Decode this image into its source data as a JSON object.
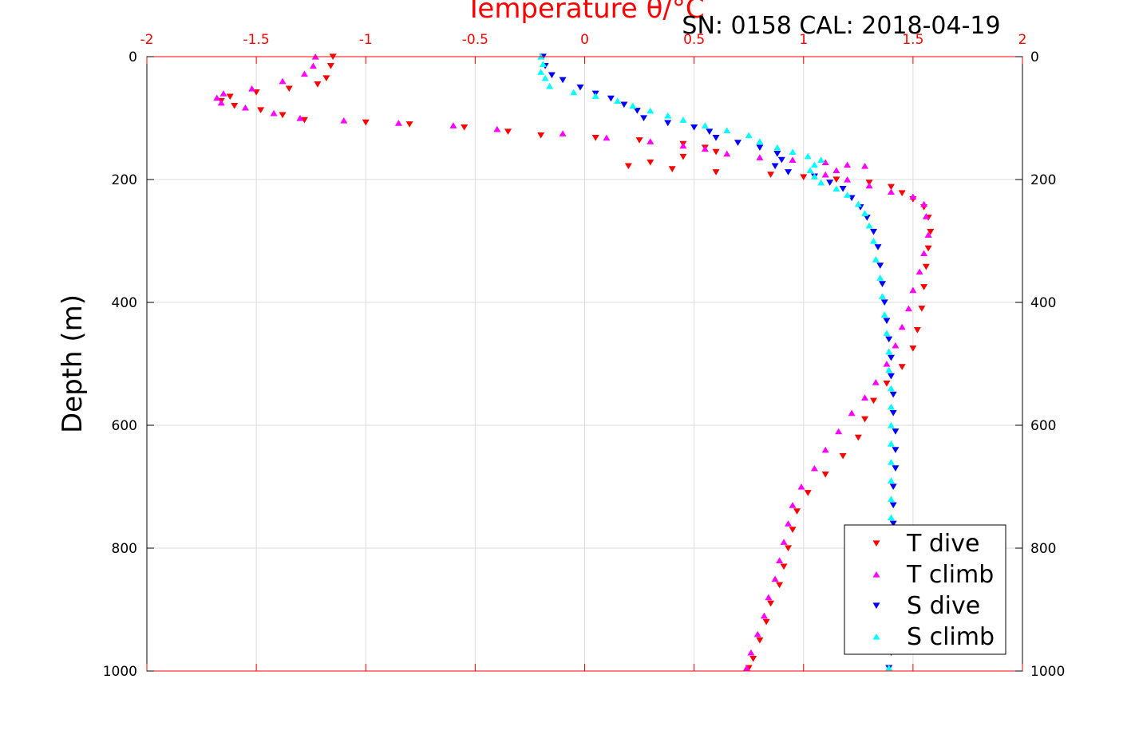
{
  "chart_data": {
    "type": "scatter",
    "title": "SN: 0158  CAL: 2018-04-19",
    "xlabel": "Temperature θ/°C",
    "ylabel": "Depth (m)",
    "xlim": [
      -2,
      2
    ],
    "ylim": [
      0,
      1000
    ],
    "y_reversed": true,
    "grid": true,
    "legend_position": "bottom-right",
    "x_ticks": [
      "-2",
      "-1.5",
      "-1",
      "-0.5",
      "0",
      "0.5",
      "1",
      "1.5",
      "2"
    ],
    "y_ticks": [
      "0",
      "200",
      "400",
      "600",
      "800",
      "1000"
    ],
    "x_tick_values": [
      -2,
      -1.5,
      -1,
      -0.5,
      0,
      0.5,
      1,
      1.5,
      2
    ],
    "y_tick_values": [
      0,
      200,
      400,
      600,
      800,
      1000
    ],
    "series": [
      {
        "name": "T dive",
        "color": "#ff0000",
        "marker": "triangle-down",
        "points": [
          [
            -1.15,
            0
          ],
          [
            -1.16,
            15
          ],
          [
            -1.18,
            35
          ],
          [
            -1.22,
            45
          ],
          [
            -1.35,
            52
          ],
          [
            -1.5,
            58
          ],
          [
            -1.62,
            65
          ],
          [
            -1.66,
            72
          ],
          [
            -1.6,
            80
          ],
          [
            -1.48,
            87
          ],
          [
            -1.38,
            95
          ],
          [
            -1.28,
            103
          ],
          [
            -1.0,
            107
          ],
          [
            -0.8,
            110
          ],
          [
            -0.55,
            115
          ],
          [
            -0.35,
            122
          ],
          [
            -0.2,
            128
          ],
          [
            0.05,
            132
          ],
          [
            0.25,
            136
          ],
          [
            0.45,
            142
          ],
          [
            0.55,
            148
          ],
          [
            0.6,
            155
          ],
          [
            0.45,
            163
          ],
          [
            0.3,
            172
          ],
          [
            0.2,
            178
          ],
          [
            0.4,
            183
          ],
          [
            0.6,
            188
          ],
          [
            0.85,
            192
          ],
          [
            1.0,
            196
          ],
          [
            1.15,
            200
          ],
          [
            1.3,
            205
          ],
          [
            1.4,
            212
          ],
          [
            1.45,
            222
          ],
          [
            1.5,
            232
          ],
          [
            1.55,
            245
          ],
          [
            1.57,
            262
          ],
          [
            1.58,
            285
          ],
          [
            1.57,
            312
          ],
          [
            1.56,
            342
          ],
          [
            1.55,
            375
          ],
          [
            1.54,
            410
          ],
          [
            1.52,
            445
          ],
          [
            1.5,
            475
          ],
          [
            1.45,
            505
          ],
          [
            1.38,
            532
          ],
          [
            1.32,
            560
          ],
          [
            1.28,
            590
          ],
          [
            1.25,
            620
          ],
          [
            1.18,
            650
          ],
          [
            1.1,
            680
          ],
          [
            1.02,
            710
          ],
          [
            0.97,
            740
          ],
          [
            0.95,
            770
          ],
          [
            0.93,
            800
          ],
          [
            0.91,
            830
          ],
          [
            0.89,
            860
          ],
          [
            0.85,
            890
          ],
          [
            0.83,
            920
          ],
          [
            0.8,
            950
          ],
          [
            0.77,
            980
          ],
          [
            0.75,
            995
          ]
        ]
      },
      {
        "name": "T climb",
        "color": "#ff00ff",
        "marker": "triangle-up",
        "points": [
          [
            -1.23,
            0
          ],
          [
            -1.24,
            15
          ],
          [
            -1.28,
            28
          ],
          [
            -1.38,
            40
          ],
          [
            -1.52,
            52
          ],
          [
            -1.65,
            60
          ],
          [
            -1.68,
            67
          ],
          [
            -1.66,
            75
          ],
          [
            -1.55,
            83
          ],
          [
            -1.42,
            92
          ],
          [
            -1.3,
            100
          ],
          [
            -1.1,
            104
          ],
          [
            -0.85,
            108
          ],
          [
            -0.6,
            112
          ],
          [
            -0.4,
            118
          ],
          [
            -0.1,
            125
          ],
          [
            0.1,
            132
          ],
          [
            0.3,
            138
          ],
          [
            0.45,
            145
          ],
          [
            0.55,
            150
          ],
          [
            0.65,
            158
          ],
          [
            0.8,
            164
          ],
          [
            0.95,
            168
          ],
          [
            1.1,
            172
          ],
          [
            1.2,
            176
          ],
          [
            1.28,
            178
          ],
          [
            1.15,
            185
          ],
          [
            1.1,
            192
          ],
          [
            1.2,
            200
          ],
          [
            1.3,
            210
          ],
          [
            1.4,
            220
          ],
          [
            1.5,
            228
          ],
          [
            1.55,
            240
          ],
          [
            1.56,
            260
          ],
          [
            1.57,
            290
          ],
          [
            1.55,
            320
          ],
          [
            1.53,
            350
          ],
          [
            1.5,
            380
          ],
          [
            1.48,
            410
          ],
          [
            1.45,
            440
          ],
          [
            1.42,
            470
          ],
          [
            1.38,
            500
          ],
          [
            1.33,
            530
          ],
          [
            1.28,
            555
          ],
          [
            1.22,
            580
          ],
          [
            1.16,
            610
          ],
          [
            1.1,
            640
          ],
          [
            1.05,
            670
          ],
          [
            0.99,
            700
          ],
          [
            0.95,
            730
          ],
          [
            0.93,
            760
          ],
          [
            0.91,
            790
          ],
          [
            0.89,
            820
          ],
          [
            0.87,
            850
          ],
          [
            0.84,
            880
          ],
          [
            0.82,
            910
          ],
          [
            0.79,
            940
          ],
          [
            0.76,
            970
          ],
          [
            0.74,
            995
          ]
        ]
      },
      {
        "name": "S dive",
        "color": "#0000ff",
        "marker": "triangle-down",
        "points": [
          [
            -0.19,
            0
          ],
          [
            -0.18,
            15
          ],
          [
            -0.15,
            30
          ],
          [
            -0.1,
            38
          ],
          [
            -0.02,
            50
          ],
          [
            0.05,
            60
          ],
          [
            0.12,
            68
          ],
          [
            0.18,
            78
          ],
          [
            0.24,
            88
          ],
          [
            0.27,
            100
          ],
          [
            0.38,
            108
          ],
          [
            0.5,
            115
          ],
          [
            0.57,
            122
          ],
          [
            0.6,
            132
          ],
          [
            0.7,
            140
          ],
          [
            0.8,
            148
          ],
          [
            0.88,
            158
          ],
          [
            0.9,
            168
          ],
          [
            0.87,
            178
          ],
          [
            0.93,
            188
          ],
          [
            1.05,
            195
          ],
          [
            1.12,
            205
          ],
          [
            1.18,
            215
          ],
          [
            1.22,
            230
          ],
          [
            1.26,
            245
          ],
          [
            1.29,
            262
          ],
          [
            1.32,
            285
          ],
          [
            1.34,
            310
          ],
          [
            1.35,
            340
          ],
          [
            1.36,
            370
          ],
          [
            1.37,
            400
          ],
          [
            1.38,
            430
          ],
          [
            1.39,
            460
          ],
          [
            1.4,
            490
          ],
          [
            1.4,
            520
          ],
          [
            1.41,
            550
          ],
          [
            1.41,
            580
          ],
          [
            1.42,
            610
          ],
          [
            1.42,
            640
          ],
          [
            1.42,
            670
          ],
          [
            1.41,
            700
          ],
          [
            1.41,
            730
          ],
          [
            1.41,
            760
          ],
          [
            1.4,
            790
          ],
          [
            1.4,
            820
          ],
          [
            1.4,
            850
          ],
          [
            1.4,
            880
          ],
          [
            1.4,
            910
          ],
          [
            1.4,
            940
          ],
          [
            1.4,
            970
          ],
          [
            1.39,
            995
          ]
        ]
      },
      {
        "name": "S climb",
        "color": "#00ffff",
        "marker": "triangle-up",
        "points": [
          [
            -0.2,
            0
          ],
          [
            -0.19,
            12
          ],
          [
            -0.2,
            25
          ],
          [
            -0.18,
            35
          ],
          [
            -0.16,
            48
          ],
          [
            -0.05,
            58
          ],
          [
            0.05,
            64
          ],
          [
            0.15,
            72
          ],
          [
            0.22,
            80
          ],
          [
            0.3,
            88
          ],
          [
            0.38,
            96
          ],
          [
            0.45,
            103
          ],
          [
            0.55,
            112
          ],
          [
            0.65,
            120
          ],
          [
            0.75,
            128
          ],
          [
            0.8,
            138
          ],
          [
            0.88,
            148
          ],
          [
            0.95,
            155
          ],
          [
            1.02,
            162
          ],
          [
            1.08,
            168
          ],
          [
            1.05,
            176
          ],
          [
            1.03,
            185
          ],
          [
            1.05,
            195
          ],
          [
            1.08,
            205
          ],
          [
            1.15,
            215
          ],
          [
            1.2,
            225
          ],
          [
            1.25,
            240
          ],
          [
            1.28,
            255
          ],
          [
            1.3,
            275
          ],
          [
            1.32,
            300
          ],
          [
            1.33,
            330
          ],
          [
            1.35,
            360
          ],
          [
            1.36,
            390
          ],
          [
            1.37,
            420
          ],
          [
            1.38,
            450
          ],
          [
            1.39,
            480
          ],
          [
            1.39,
            510
          ],
          [
            1.4,
            540
          ],
          [
            1.4,
            570
          ],
          [
            1.4,
            600
          ],
          [
            1.4,
            630
          ],
          [
            1.4,
            660
          ],
          [
            1.4,
            690
          ],
          [
            1.4,
            720
          ],
          [
            1.4,
            750
          ],
          [
            1.4,
            780
          ],
          [
            1.4,
            810
          ],
          [
            1.4,
            840
          ],
          [
            1.4,
            870
          ],
          [
            1.4,
            900
          ],
          [
            1.39,
            930
          ],
          [
            1.39,
            960
          ],
          [
            1.39,
            995
          ]
        ]
      }
    ]
  }
}
